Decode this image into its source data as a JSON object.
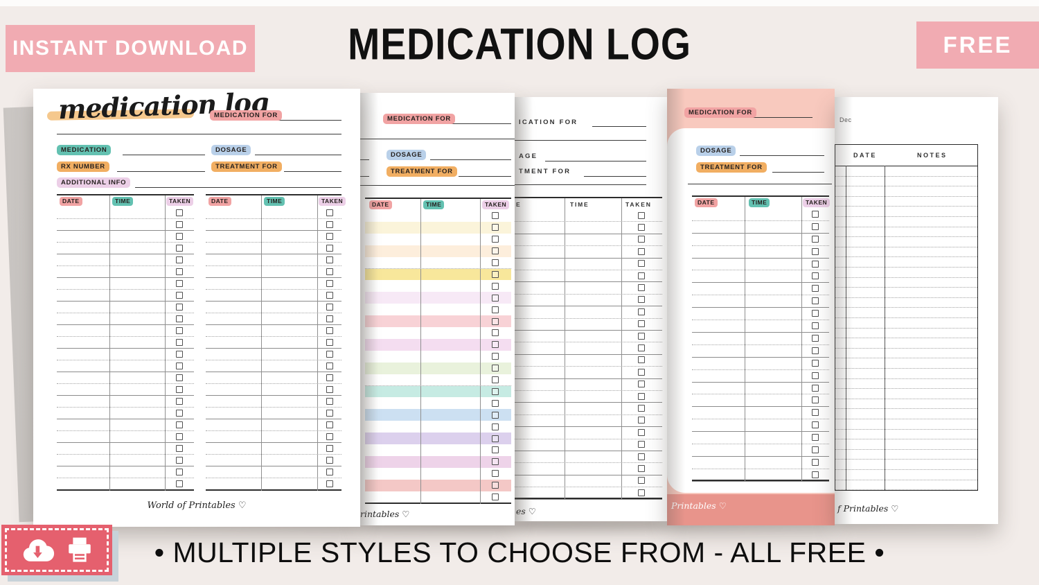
{
  "header": {
    "badge_left": "INSTANT DOWNLOAD",
    "title": "MEDICATION LOG",
    "badge_right": "FREE"
  },
  "bottom": {
    "tagline": "• MULTIPLE STYLES TO CHOOSE FROM - ALL FREE •",
    "icons": [
      "cloud-download-icon",
      "printer-icon"
    ]
  },
  "colors": {
    "background": "#f2ece9",
    "badge_pink": "#f1abb2",
    "icon_box_red": "#e5606e",
    "icon_box_shadow": "#c7d2d9",
    "label_pink": "#f1a3a3",
    "label_teal": "#63c1b1",
    "label_blue": "#b9d0e9",
    "label_orange": "#f1ae62",
    "label_lilac": "#eccfe7",
    "swash_orange": "#f5c88d",
    "page4_bg": "#f8c9be",
    "page4_blob": "#f2a89c",
    "page4_footer_band": "#e8948b"
  },
  "page1": {
    "title": "medication log",
    "fields": {
      "medication_for": "MEDICATION FOR",
      "medication": "MEDICATION",
      "dosage": "DOSAGE",
      "rx_number": "RX NUMBER",
      "treatment_for": "TREATMENT FOR",
      "additional_info": "ADDITIONAL INFO"
    },
    "table": {
      "date": "DATE",
      "time": "TIME",
      "taken": "TAKEN",
      "rows": 24
    },
    "brand": "World of Printables ♡"
  },
  "page2": {
    "fields": {
      "medication_for": "MEDICATION FOR",
      "dosage": "DOSAGE",
      "treatment_for": "TREATMENT FOR"
    },
    "table": {
      "date": "DATE",
      "time": "TIME",
      "taken": "TAKEN",
      "rows": 25,
      "stripes": [
        "#ffffff",
        "#fbf4da",
        "#ffffff",
        "#fdeedc",
        "#ffffff",
        "#f8e79b",
        "#ffffff",
        "#f7e9f6",
        "#ffffff",
        "#f8d2d6",
        "#ffffff",
        "#f4ddf0",
        "#ffffff",
        "#e9f2dc",
        "#ffffff",
        "#c6ebe3",
        "#ffffff",
        "#cce0f2",
        "#ffffff",
        "#dcd0ed",
        "#ffffff",
        "#eed3e9",
        "#ffffff",
        "#f4c8c6",
        "#ffffff"
      ]
    },
    "brand_fragment": "rintables ♡"
  },
  "page3": {
    "fields": {
      "medication_for": "ICATION FOR",
      "dosage": "AGE",
      "treatment_for": "TMENT FOR"
    },
    "table": {
      "date": "E",
      "time": "TIME",
      "taken": "TAKEN",
      "rows": 24
    },
    "brand_fragment": "es ♡"
  },
  "page4": {
    "fields": {
      "medication_for": "MEDICATION FOR",
      "dosage": "DOSAGE",
      "treatment_for": "TREATMENT FOR"
    },
    "table": {
      "date": "DATE",
      "time": "TIME",
      "taken": "TAKEN",
      "rows": 22
    },
    "brand_fragment": "Printables ♡"
  },
  "page5": {
    "month_fragment": "Dec",
    "table": {
      "date": "DATE",
      "notes": "NOTES",
      "rows": 32
    },
    "brand_fragment": "f Printables ♡"
  }
}
